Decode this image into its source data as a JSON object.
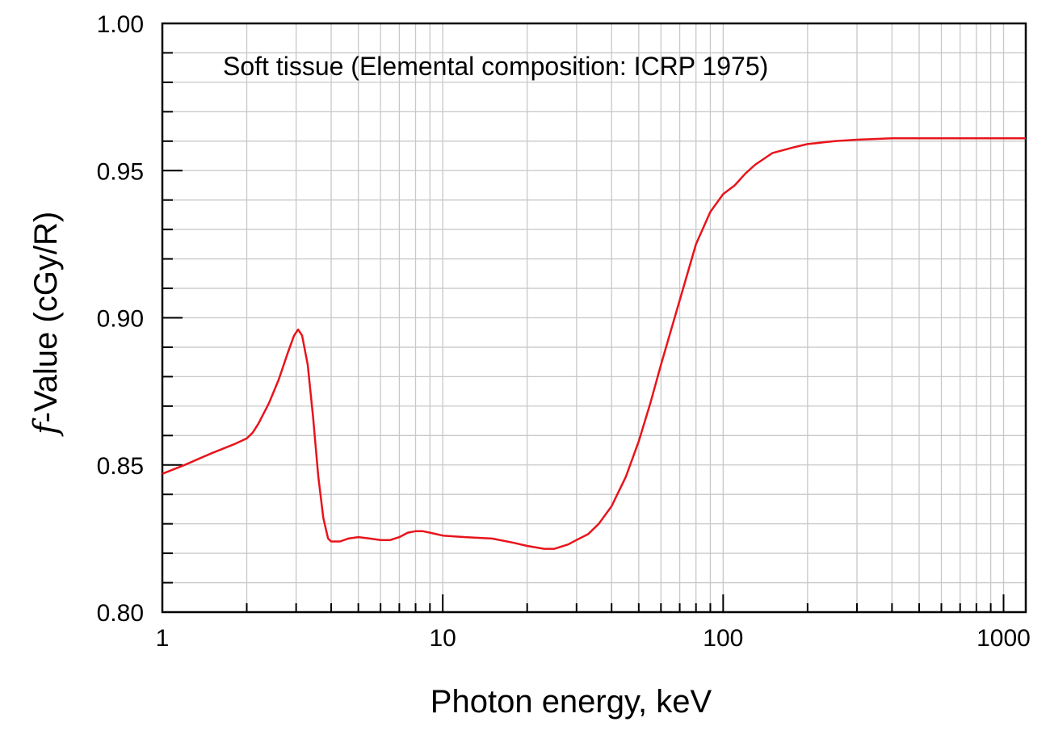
{
  "chart_data": {
    "type": "line",
    "title": "",
    "annotation": "Soft tissue (Elemental composition: ICRP 1975)",
    "xlabel": "Photon energy, keV",
    "ylabel_italic": "f",
    "ylabel_rest": "-Value  (cGy/R)",
    "x_scale": "log",
    "xlim": [
      1,
      1200
    ],
    "ylim": [
      0.8,
      1.0
    ],
    "grid": true,
    "legend": "none",
    "x_ticks": [
      {
        "value": 1,
        "label": "1"
      },
      {
        "value": 10,
        "label": "10"
      },
      {
        "value": 100,
        "label": "100"
      },
      {
        "value": 1000,
        "label": "1000"
      }
    ],
    "y_ticks": [
      {
        "value": 0.8,
        "label": "0.80"
      },
      {
        "value": 0.85,
        "label": "0.85"
      },
      {
        "value": 0.9,
        "label": "0.90"
      },
      {
        "value": 0.95,
        "label": "0.95"
      },
      {
        "value": 1.0,
        "label": "1.00"
      }
    ],
    "series": [
      {
        "color": "#e8141b",
        "points": [
          [
            1.0,
            0.847
          ],
          [
            1.2,
            0.85
          ],
          [
            1.5,
            0.854
          ],
          [
            1.8,
            0.857
          ],
          [
            2.0,
            0.859
          ],
          [
            2.1,
            0.861
          ],
          [
            2.2,
            0.864
          ],
          [
            2.4,
            0.871
          ],
          [
            2.6,
            0.879
          ],
          [
            2.8,
            0.888
          ],
          [
            2.95,
            0.894
          ],
          [
            3.05,
            0.896
          ],
          [
            3.15,
            0.894
          ],
          [
            3.3,
            0.884
          ],
          [
            3.45,
            0.866
          ],
          [
            3.6,
            0.846
          ],
          [
            3.75,
            0.832
          ],
          [
            3.9,
            0.825
          ],
          [
            4.0,
            0.824
          ],
          [
            4.3,
            0.824
          ],
          [
            4.6,
            0.825
          ],
          [
            5.0,
            0.8255
          ],
          [
            5.5,
            0.825
          ],
          [
            6.0,
            0.8245
          ],
          [
            6.5,
            0.8245
          ],
          [
            7.0,
            0.8255
          ],
          [
            7.5,
            0.827
          ],
          [
            8.0,
            0.8275
          ],
          [
            8.5,
            0.8275
          ],
          [
            9.0,
            0.827
          ],
          [
            10.0,
            0.826
          ],
          [
            12.0,
            0.8255
          ],
          [
            15.0,
            0.825
          ],
          [
            18.0,
            0.8235
          ],
          [
            20.0,
            0.8225
          ],
          [
            23.0,
            0.8215
          ],
          [
            25.0,
            0.8215
          ],
          [
            28.0,
            0.823
          ],
          [
            30.0,
            0.8245
          ],
          [
            33.0,
            0.8265
          ],
          [
            36.0,
            0.83
          ],
          [
            40.0,
            0.836
          ],
          [
            45.0,
            0.846
          ],
          [
            50.0,
            0.858
          ],
          [
            55.0,
            0.871
          ],
          [
            60.0,
            0.884
          ],
          [
            70.0,
            0.906
          ],
          [
            80.0,
            0.925
          ],
          [
            90.0,
            0.936
          ],
          [
            100.0,
            0.942
          ],
          [
            110.0,
            0.945
          ],
          [
            120.0,
            0.949
          ],
          [
            130.0,
            0.952
          ],
          [
            150.0,
            0.956
          ],
          [
            180.0,
            0.958
          ],
          [
            200.0,
            0.959
          ],
          [
            250.0,
            0.96
          ],
          [
            300.0,
            0.9605
          ],
          [
            400.0,
            0.961
          ],
          [
            600.0,
            0.961
          ],
          [
            1000.0,
            0.961
          ],
          [
            1200.0,
            0.961
          ]
        ]
      }
    ]
  }
}
